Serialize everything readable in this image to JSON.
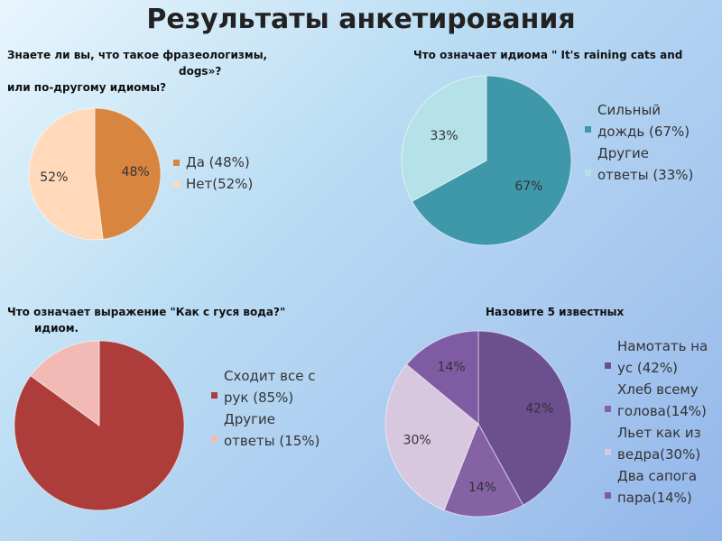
{
  "slide_title": "Результаты анкетирования",
  "chart_data": [
    {
      "type": "pie",
      "title_lines": [
        "Знаете ли вы, что такое фразеологизмы,",
        "dogs»?",
        "или по-другому идиомы?"
      ],
      "categories": [
        "Да (48%)",
        "Нет(52%)"
      ],
      "values": [
        48,
        52
      ],
      "data_labels": [
        "48%",
        "52%"
      ],
      "colors": [
        "#d7853f",
        "#ffd9b9"
      ],
      "legend_position": "right"
    },
    {
      "type": "pie",
      "title_lines": [
        "Что означает идиома \" It's raining cats and"
      ],
      "categories": [
        "Сильный дождь (67%)",
        "Другие ответы (33%)"
      ],
      "values": [
        67,
        33
      ],
      "data_labels": [
        "67%",
        "33%"
      ],
      "colors": [
        "#3f97aa",
        "#b5e1e9"
      ],
      "legend_position": "right"
    },
    {
      "type": "pie",
      "title_lines": [
        "Что означает выражение \"Как с гуся вода?\"",
        "идиом."
      ],
      "categories": [
        "Сходит все с рук (85%)",
        "Другие ответы (15%)"
      ],
      "values": [
        85,
        15
      ],
      "data_labels": [],
      "colors": [
        "#ac3d3a",
        "#f2b9b5"
      ],
      "legend_position": "right"
    },
    {
      "type": "pie",
      "title_lines": [
        "Назовите 5 известных"
      ],
      "categories": [
        "Намотать на ус (42%)",
        "Хлеб всему голова(14%)",
        "Льет как из ведра(30%)",
        "Два сапога пара(14%)"
      ],
      "values": [
        42,
        14,
        30,
        14
      ],
      "data_labels": [
        "42%",
        "14%",
        "30%",
        "14%"
      ],
      "colors": [
        "#6c4f8f",
        "#8462a3",
        "#d7c8e0",
        "#7f5ba3"
      ],
      "legend_position": "right"
    }
  ]
}
